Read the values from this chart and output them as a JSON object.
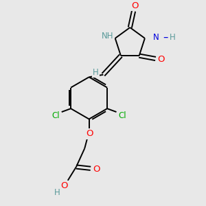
{
  "background_color": "#e8e8e8",
  "bond_color": "#000000",
  "N_color": "#0000dd",
  "O_color": "#ff0000",
  "Cl_color": "#00aa00",
  "H_color": "#5a9a9a",
  "font_size": 8.5,
  "bond_width": 1.4,
  "figsize": [
    3.0,
    3.0
  ],
  "dpi": 100,
  "xlim": [
    0,
    10
  ],
  "ylim": [
    0,
    10
  ]
}
